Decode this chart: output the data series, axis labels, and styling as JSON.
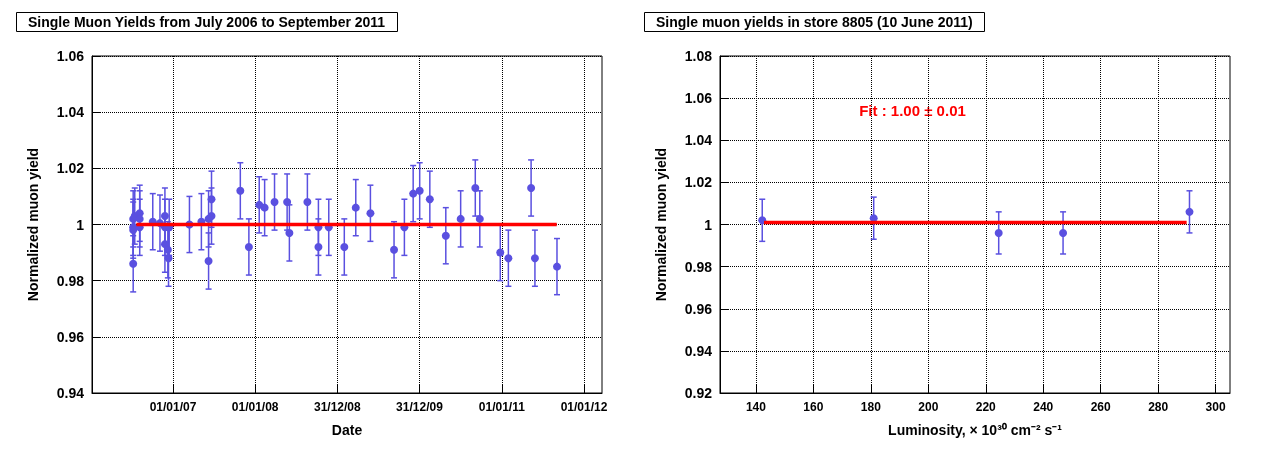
{
  "chart_data": [
    {
      "type": "scatter",
      "title": "Single Muon Yields from July 2006 to September 2011",
      "xlabel": "Date",
      "ylabel": "Normalized muon yield",
      "xlim": [
        "2006-01-06",
        "2012-03-21"
      ],
      "xticks": [
        {
          "value": "2007-01-01",
          "label": "01/01/07"
        },
        {
          "value": "2008-01-01",
          "label": "01/01/08"
        },
        {
          "value": "2008-12-31",
          "label": "31/12/08"
        },
        {
          "value": "2009-12-31",
          "label": "31/12/09"
        },
        {
          "value": "2011-01-01",
          "label": "01/01/11"
        },
        {
          "value": "2012-01-01",
          "label": "01/01/12"
        }
      ],
      "ylim": [
        0.94,
        1.06
      ],
      "yticks": [
        0.94,
        0.96,
        0.98,
        1,
        1.02,
        1.04,
        1.06
      ],
      "grid": true,
      "marker": "circle",
      "series": [
        {
          "color": "#5a50e0",
          "x": [
            "2006-07-08",
            "2006-07-08",
            "2006-07-08",
            "2006-07-08",
            "2006-07-15",
            "2006-08-06",
            "2006-08-06",
            "2006-08-06",
            "2006-10-03",
            "2006-11-04",
            "2006-11-26",
            "2006-11-26",
            "2006-11-26",
            "2006-12-15",
            "2006-12-09",
            "2006-12-12",
            "2007-03-15",
            "2007-05-07",
            "2007-06-08",
            "2007-06-08",
            "2007-06-21",
            "2007-06-21",
            "2007-10-27",
            "2007-12-04",
            "2008-01-19",
            "2008-02-12",
            "2008-03-27",
            "2008-05-22",
            "2008-06-01",
            "2008-08-20",
            "2008-10-08",
            "2008-10-08",
            "2008-11-23",
            "2009-01-31",
            "2009-03-23",
            "2009-05-27",
            "2009-09-09",
            "2009-10-25",
            "2009-12-03",
            "2010-01-01",
            "2010-02-15",
            "2010-04-27",
            "2010-07-02",
            "2010-09-05",
            "2010-09-25",
            "2010-12-25",
            "2011-01-30",
            "2011-05-11",
            "2011-05-28",
            "2011-09-03"
          ],
          "values": [
            1.002,
            0.999,
            0.998,
            0.986,
            1.003,
            1.004,
            1.002,
            0.999,
            1.001,
            1.0005,
            1.003,
            0.999,
            0.993,
            0.999,
            0.991,
            0.988,
            1.0,
            1.001,
            1.002,
            0.987,
            1.009,
            1.003,
            1.012,
            0.992,
            1.007,
            1.006,
            1.008,
            1.008,
            0.997,
            1.008,
            0.999,
            0.992,
            0.999,
            0.992,
            1.006,
            1.004,
            0.991,
            0.999,
            1.011,
            1.012,
            1.009,
            0.996,
            1.002,
            1.013,
            1.002,
            0.99,
            0.988,
            1.013,
            0.988,
            0.985
          ],
          "errors": [
            0.01,
            0.01,
            0.01,
            0.01,
            0.01,
            0.01,
            0.01,
            0.01,
            0.01,
            0.01,
            0.01,
            0.01,
            0.01,
            0.01,
            0.01,
            0.01,
            0.01,
            0.01,
            0.01,
            0.01,
            0.01,
            0.01,
            0.01,
            0.01,
            0.01,
            0.01,
            0.01,
            0.01,
            0.01,
            0.01,
            0.01,
            0.01,
            0.01,
            0.01,
            0.01,
            0.01,
            0.01,
            0.01,
            0.01,
            0.01,
            0.01,
            0.01,
            0.01,
            0.01,
            0.01,
            0.01,
            0.01,
            0.01,
            0.01,
            0.01
          ]
        },
        {
          "type": "line",
          "marker": "none",
          "color": "#ff0000",
          "line_style": "solid",
          "x": [
            "2006-07-22",
            "2011-09-02"
          ],
          "values": [
            1,
            1
          ]
        }
      ]
    },
    {
      "type": "scatter",
      "title": "Single muon yields in store 8805 (10 June 2011)",
      "xlabel": "Luminosity, × 10³⁰ cm⁻² s⁻¹",
      "ylabel": "Normalized muon yield",
      "annotations": [
        "Fit : 1.00 ± 0.01"
      ],
      "xlim": [
        127.5,
        305
      ],
      "xticks": [
        140,
        160,
        180,
        200,
        220,
        240,
        260,
        280,
        300
      ],
      "ylim": [
        0.92,
        1.08
      ],
      "yticks": [
        0.92,
        0.94,
        0.96,
        0.98,
        1,
        1.02,
        1.04,
        1.06,
        1.08
      ],
      "grid": true,
      "marker": "circle",
      "series": [
        {
          "color": "#5a50e0",
          "x": [
            142.2,
            181,
            224.5,
            246.9,
            290.9
          ],
          "values": [
            1.002,
            1.003,
            0.996,
            0.996,
            1.006
          ],
          "errors": [
            0.01,
            0.01,
            0.01,
            0.01,
            0.01
          ]
        },
        {
          "type": "line",
          "marker": "none",
          "color": "#ff0000",
          "line_style": "solid",
          "x": [
            142.8,
            289.9
          ],
          "values": [
            1.001,
            1.001
          ]
        }
      ]
    }
  ]
}
